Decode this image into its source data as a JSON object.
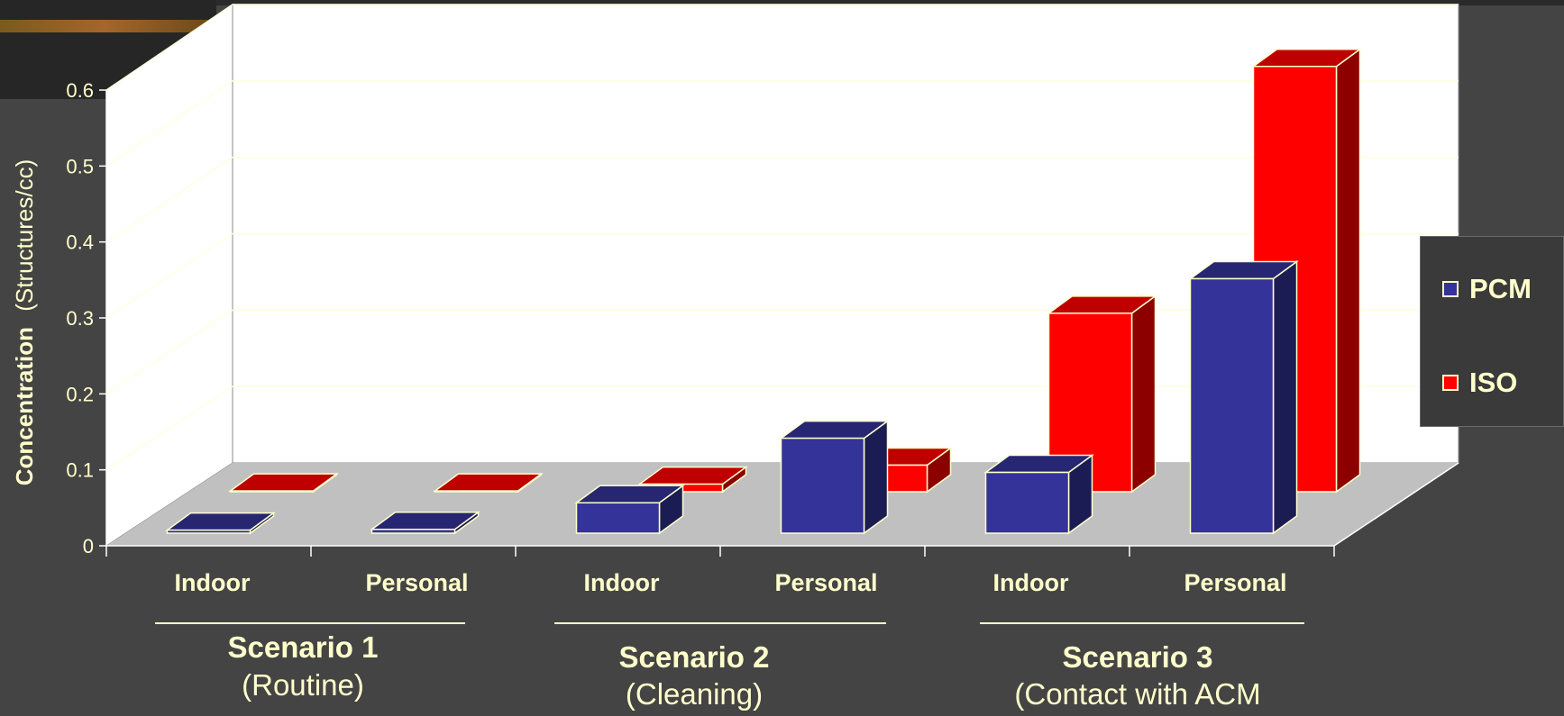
{
  "colors": {
    "pcm": "#333399",
    "iso": "#ff0000",
    "text": "#ffffcc",
    "floor": "#c0c0c0"
  },
  "chart_data": {
    "type": "bar",
    "ylabel_bold": "Concentration",
    "ylabel_unit": "(Structures/cc)",
    "ylim": [
      0,
      0.6
    ],
    "yticks": [
      "0",
      "0.1",
      "0.2",
      "0.3",
      "0.4",
      "0.5",
      "0.6"
    ],
    "categories": [
      "Indoor",
      "Personal",
      "Indoor",
      "Personal",
      "Indoor",
      "Personal"
    ],
    "groups": [
      {
        "name": "Scenario 1",
        "sub": "(Routine)"
      },
      {
        "name": "Scenario 2",
        "sub": "(Cleaning)"
      },
      {
        "name": "Scenario 3",
        "sub": "(Contact with ACM"
      }
    ],
    "series": [
      {
        "name": "PCM",
        "values": [
          0.004,
          0.005,
          0.04,
          0.125,
          0.08,
          0.335
        ]
      },
      {
        "name": "ISO",
        "values": [
          0.001,
          0.001,
          0.01,
          0.035,
          0.235,
          0.56
        ]
      }
    ],
    "legend": "right",
    "grid": true
  }
}
